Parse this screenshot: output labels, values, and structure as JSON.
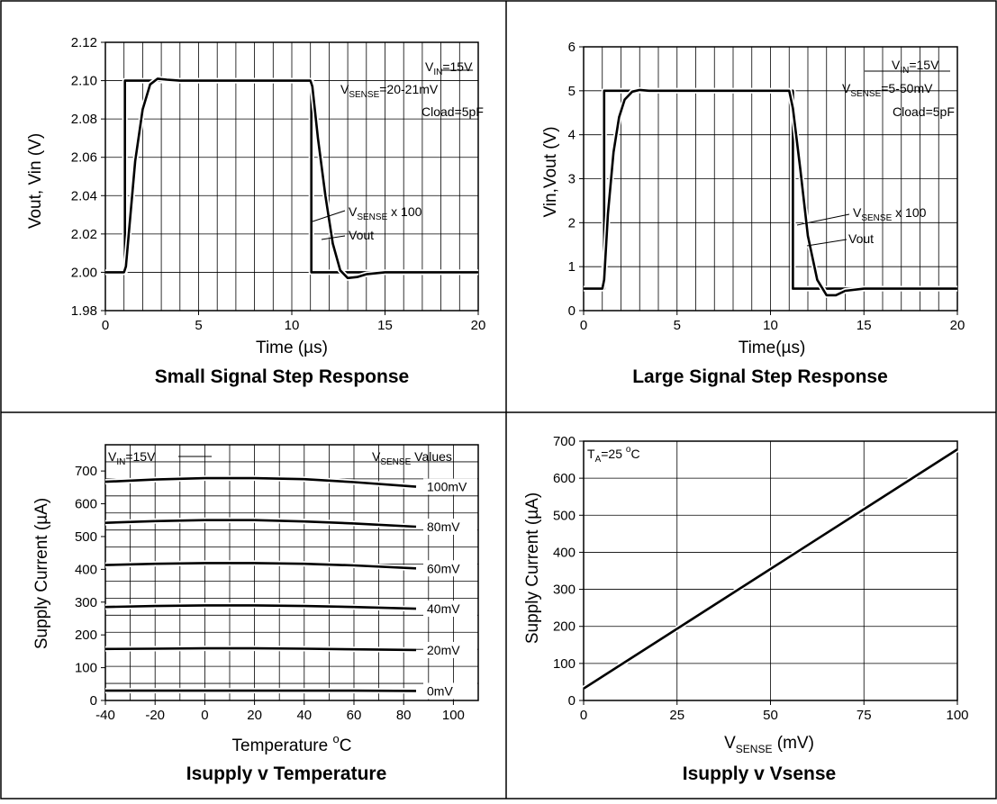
{
  "chart_data": [
    {
      "type": "line",
      "caption": "Small Signal Step Response",
      "xlabel": "Time (µs)",
      "ylabel": "Vout, Vin (V)",
      "xlim": [
        0,
        20
      ],
      "ylim": [
        1.98,
        2.12
      ],
      "xticks": [
        0,
        5,
        10,
        15,
        20
      ],
      "yticks": [
        1.98,
        2.0,
        2.02,
        2.04,
        2.06,
        2.08,
        2.1,
        2.12
      ],
      "ytick_labels": [
        "1.98",
        "2.00",
        "2.02",
        "2.04",
        "2.06",
        "2.08",
        "2.10",
        "2.12"
      ],
      "grid": true,
      "annotations": {
        "vin_main": "V",
        "vin_sub": "IN",
        "vin_rest": "=15V",
        "vsense_main": "V",
        "vsense_sub": "SENSE",
        "vsense_rest": "=20-21mV",
        "cload": "Cload=5pF",
        "scale_main": "V",
        "scale_sub": "SENSE",
        "scale_rest": " x 100",
        "vout": "Vout"
      },
      "series": [
        {
          "x": [
            0,
            1.05,
            1.05,
            11.05,
            11.05,
            20
          ],
          "y": [
            2.0,
            2.0,
            2.1,
            2.1,
            2.0,
            2.0
          ]
        },
        {
          "x": [
            0,
            1.0,
            1.1,
            1.3,
            1.6,
            2.0,
            2.4,
            2.8,
            3.3,
            4,
            5,
            11.0,
            11.1,
            11.4,
            11.8,
            12.2,
            12.6,
            13.0,
            13.5,
            14,
            15,
            20
          ],
          "y": [
            2.0,
            2.0,
            2.003,
            2.025,
            2.058,
            2.085,
            2.098,
            2.101,
            2.1005,
            2.1,
            2.1,
            2.1,
            2.097,
            2.07,
            2.04,
            2.015,
            2.001,
            1.997,
            1.9975,
            1.999,
            2.0,
            2.0
          ]
        }
      ]
    },
    {
      "type": "line",
      "caption": "Large Signal Step Response",
      "xlabel": "Time(µs)",
      "ylabel": "Vin,Vout (V)",
      "xlim": [
        0,
        20
      ],
      "ylim": [
        0,
        6
      ],
      "xticks": [
        0,
        5,
        10,
        15,
        20
      ],
      "yticks": [
        0,
        1,
        2,
        3,
        4,
        5,
        6
      ],
      "ytick_labels": [
        "0",
        "1",
        "2",
        "3",
        "4",
        "5",
        "6"
      ],
      "grid": true,
      "annotations": {
        "vin_main": "V",
        "vin_sub": "IN",
        "vin_rest": "=15V",
        "vsense_main": "V",
        "vsense_sub": "SENSE",
        "vsense_rest": "=5-50mV",
        "cload": "Cload=5pF",
        "scale_main": "V",
        "scale_sub": "SENSE",
        "scale_rest": " x 100",
        "vout": "Vout"
      },
      "series": [
        {
          "x": [
            0,
            1.1,
            1.1,
            11.2,
            11.2,
            20
          ],
          "y": [
            0.5,
            0.5,
            5.0,
            5.0,
            0.5,
            0.5
          ]
        },
        {
          "x": [
            0,
            1.0,
            1.1,
            1.3,
            1.6,
            1.9,
            2.2,
            2.6,
            3.0,
            3.5,
            5,
            11.0,
            11.2,
            11.6,
            12.0,
            12.5,
            13.0,
            13.5,
            14.0,
            15,
            20
          ],
          "y": [
            0.5,
            0.5,
            0.7,
            2.2,
            3.6,
            4.4,
            4.8,
            4.98,
            5.02,
            5.0,
            5.0,
            5.0,
            4.6,
            3.2,
            1.7,
            0.7,
            0.35,
            0.35,
            0.45,
            0.5,
            0.5
          ]
        }
      ]
    },
    {
      "type": "line",
      "caption": "Isupply v Temperature",
      "xlabel_main": "Temperature ",
      "xlabel_sup": "o",
      "xlabel_rest": "C",
      "ylabel": "Supply Current (µA)",
      "xlim": [
        -40,
        110
      ],
      "ylim": [
        0,
        780
      ],
      "xticks": [
        -40,
        -20,
        0,
        20,
        40,
        60,
        80,
        100
      ],
      "yticks": [
        0,
        100,
        200,
        300,
        400,
        500,
        600,
        700
      ],
      "ytick_labels": [
        "0",
        "100",
        "200",
        "300",
        "400",
        "500",
        "600",
        "700"
      ],
      "grid": true,
      "annotations": {
        "vin_main": "V",
        "vin_sub": "IN",
        "vin_rest": "=15V",
        "legend_main": "V",
        "legend_sub": "SENSE",
        "legend_rest": " Values"
      },
      "series": [
        {
          "name": "100mV",
          "x": [
            -40,
            -20,
            0,
            20,
            40,
            60,
            85
          ],
          "y": [
            667,
            674,
            678,
            678,
            675,
            666,
            652
          ]
        },
        {
          "name": "80mV",
          "x": [
            -40,
            -20,
            0,
            20,
            40,
            60,
            85
          ],
          "y": [
            542,
            547,
            550,
            550,
            546,
            540,
            530
          ]
        },
        {
          "name": "60mV",
          "x": [
            -40,
            -20,
            0,
            20,
            40,
            60,
            85
          ],
          "y": [
            413,
            417,
            419,
            419,
            417,
            412,
            403
          ]
        },
        {
          "name": "40mV",
          "x": [
            -40,
            -20,
            0,
            20,
            40,
            60,
            85
          ],
          "y": [
            285,
            288,
            290,
            290,
            288,
            285,
            280
          ]
        },
        {
          "name": "20mV",
          "x": [
            -40,
            -20,
            0,
            20,
            40,
            60,
            85
          ],
          "y": [
            157,
            158,
            159,
            159,
            158,
            156,
            154
          ]
        },
        {
          "name": "0mV",
          "x": [
            -40,
            -20,
            0,
            20,
            40,
            60,
            85
          ],
          "y": [
            30,
            30,
            30,
            30,
            30,
            30,
            29
          ]
        }
      ]
    },
    {
      "type": "line",
      "caption": "Isupply v Vsense",
      "xlabel_main": "V",
      "xlabel_sub": "SENSE",
      "xlabel_rest": " (mV)",
      "ylabel": "Supply Current (µA)",
      "xlim": [
        0,
        100
      ],
      "ylim": [
        0,
        700
      ],
      "xticks": [
        0,
        25,
        50,
        75,
        100
      ],
      "yticks": [
        0,
        100,
        200,
        300,
        400,
        500,
        600,
        700
      ],
      "ytick_labels": [
        "0",
        "100",
        "200",
        "300",
        "400",
        "500",
        "600",
        "700"
      ],
      "grid": true,
      "annotations": {
        "ta_main": "T",
        "ta_sub": "A",
        "ta_rest": "=25 ",
        "ta_sup": "o",
        "ta_end": "C"
      },
      "series": [
        {
          "x": [
            0,
            100
          ],
          "y": [
            32,
            678
          ]
        }
      ]
    }
  ]
}
